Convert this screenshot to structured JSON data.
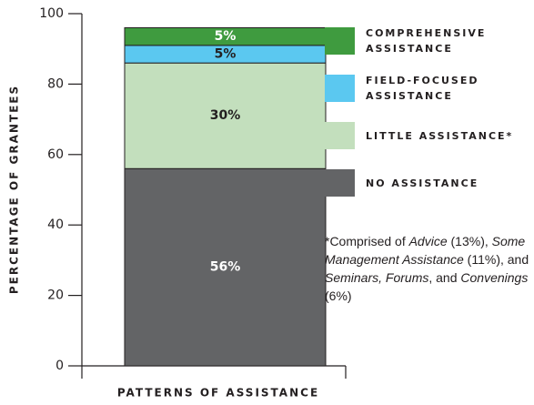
{
  "chart_data": {
    "type": "stacked_bar",
    "x_label": "PATTERNS OF ASSISTANCE",
    "y_label": "PERCENTAGE OF GRANTEES",
    "categories": [
      null
    ],
    "series": [
      {
        "name": "NO ASSISTANCE",
        "color": "#636466",
        "values": [
          56
        ],
        "value_labels": [
          "56%"
        ]
      },
      {
        "name": "LITTLE ASSISTANCE*",
        "color": "#c3dfbd",
        "values": [
          30
        ],
        "value_labels": [
          "30%"
        ]
      },
      {
        "name": "FIELD-FOCUSED ASSISTANCE",
        "color": "#5bc8f0",
        "values": [
          5
        ],
        "value_labels": [
          "5%"
        ]
      },
      {
        "name": "COMPREHENSIVE ASSISTANCE",
        "color": "#3f9b3f",
        "values": [
          5
        ],
        "value_labels": [
          "5%"
        ]
      }
    ],
    "ylim": [
      0,
      100
    ],
    "yticks": [
      0,
      20,
      40,
      60,
      80,
      100
    ],
    "footnote": [
      "*Comprised of ",
      "Advice",
      " (13%), ",
      "Some Management Assistance",
      " (11%), and ",
      "Seminars, Forums",
      ", and ",
      "Convenings",
      " (6%)"
    ]
  }
}
